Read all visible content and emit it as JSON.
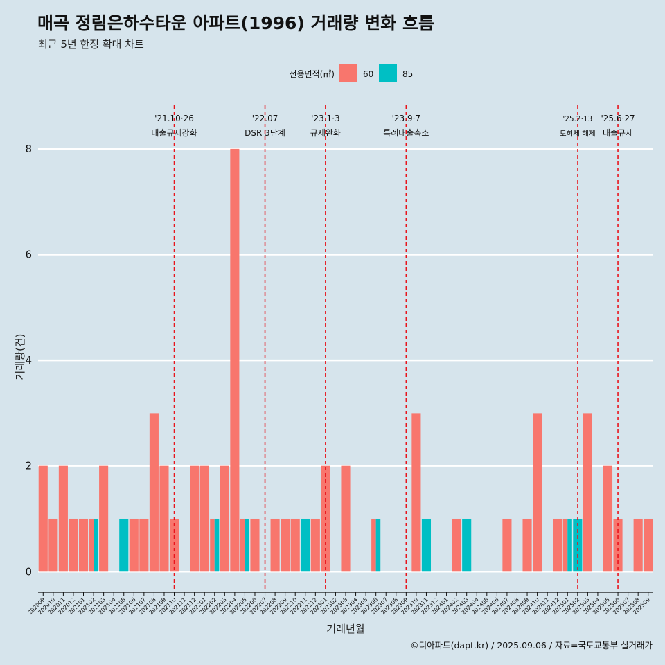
{
  "header": {
    "title": "매곡 정림은하수타운 아파트(1996) 거래량 변화 흐름",
    "subtitle": "최근 5년 한정 확대 차트"
  },
  "legend": {
    "title": "전용면적(㎡)",
    "items": [
      {
        "label": "60",
        "color": "#F8766D"
      },
      {
        "label": "85",
        "color": "#00BFC4"
      }
    ]
  },
  "caption": "©디아파트(dapt.kr) / 2025.09.06 / 자료=국토교통부 실거래가",
  "events": [
    {
      "date": "'21.10·26",
      "label": "대출규제강화",
      "month": "202110",
      "small": false
    },
    {
      "date": "'22.07",
      "label": "DSR 3단계",
      "month": "202207",
      "small": false
    },
    {
      "date": "'23.1·3",
      "label": "규제완화",
      "month": "202301",
      "small": false
    },
    {
      "date": "'23.9·7",
      "label": "특례대출축소",
      "month": "202309",
      "small": false
    },
    {
      "date": "'25.2·13",
      "label": "토허제 해제",
      "month": "202502",
      "small": true
    },
    {
      "date": "'25.6·27",
      "label": "대출규제",
      "month": "202506",
      "small": false
    }
  ],
  "chart_data": {
    "type": "bar",
    "xlabel": "거래년월",
    "ylabel": "거래량(건)",
    "ylim": [
      -0.35,
      8.85
    ],
    "yticks": [
      0,
      2,
      4,
      6,
      8
    ],
    "categories": [
      "202009",
      "202010",
      "202011",
      "202012",
      "202101",
      "202102",
      "202103",
      "202104",
      "202105",
      "202106",
      "202107",
      "202108",
      "202109",
      "202110",
      "202111",
      "202112",
      "202201",
      "202202",
      "202203",
      "202204",
      "202205",
      "202206",
      "202207",
      "202208",
      "202209",
      "202210",
      "202211",
      "202212",
      "202301",
      "202302",
      "202303",
      "202304",
      "202305",
      "202306",
      "202307",
      "202308",
      "202309",
      "202310",
      "202311",
      "202312",
      "202401",
      "202402",
      "202403",
      "202404",
      "202405",
      "202406",
      "202407",
      "202408",
      "202409",
      "202410",
      "202411",
      "202412",
      "202501",
      "202502",
      "202503",
      "202504",
      "202505",
      "202506",
      "202507",
      "202508",
      "202509"
    ],
    "series": [
      {
        "name": "60",
        "values": [
          2,
          1,
          2,
          1,
          1,
          1,
          2,
          0,
          0,
          1,
          1,
          3,
          2,
          1,
          0,
          2,
          2,
          1,
          2,
          8,
          1,
          1,
          0,
          1,
          1,
          1,
          0,
          1,
          2,
          0,
          2,
          0,
          0,
          1,
          0,
          0,
          0,
          3,
          0,
          0,
          0,
          1,
          0,
          0,
          0,
          0,
          1,
          0,
          1,
          3,
          0,
          1,
          1,
          0,
          3,
          0,
          2,
          1,
          0,
          1,
          1
        ]
      },
      {
        "name": "85",
        "values": [
          0,
          0,
          0,
          0,
          0,
          1,
          0,
          0,
          1,
          0,
          0,
          0,
          0,
          0,
          0,
          0,
          0,
          1,
          0,
          0,
          1,
          0,
          0,
          0,
          0,
          0,
          1,
          0,
          0,
          0,
          0,
          0,
          0,
          1,
          0,
          0,
          0,
          0,
          1,
          0,
          0,
          0,
          1,
          0,
          0,
          0,
          0,
          0,
          0,
          0,
          0,
          0,
          1,
          1,
          0,
          0,
          0,
          0,
          0,
          0,
          0
        ]
      }
    ],
    "grid": true,
    "legend_position": "top"
  }
}
